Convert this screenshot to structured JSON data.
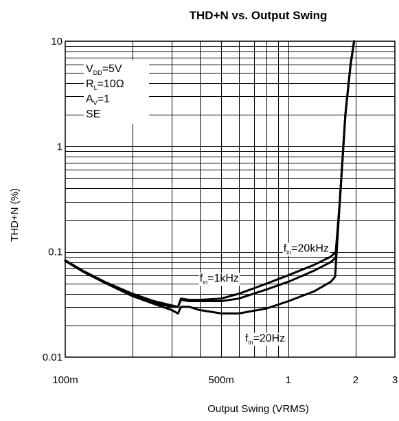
{
  "chart_data": {
    "type": "line",
    "title": "THD+N vs. Output Swing",
    "xlabel": "Output Swing (VRMS)",
    "ylabel": "THD+N (%)",
    "xscale": "log",
    "yscale": "log",
    "xlim": [
      0.1,
      3.0
    ],
    "ylim": [
      0.01,
      10
    ],
    "grid": true,
    "x_ticks": [
      {
        "value": 0.1,
        "label": "100m"
      },
      {
        "value": 0.5,
        "label": "500m"
      },
      {
        "value": 1,
        "label": "1"
      },
      {
        "value": 2,
        "label": "2"
      },
      {
        "value": 3,
        "label": "3"
      }
    ],
    "y_ticks": [
      {
        "value": 0.01,
        "label": "0.01"
      },
      {
        "value": 0.1,
        "label": "0.1"
      },
      {
        "value": 1,
        "label": "1"
      },
      {
        "value": 10,
        "label": "10"
      }
    ],
    "conditions": [
      {
        "main": "V",
        "sub": "DD",
        "rest": "=5V"
      },
      {
        "main": "R",
        "sub": "L",
        "rest": "=10Ω"
      },
      {
        "main": "A",
        "sub": "V",
        "rest": "=1"
      },
      {
        "main": "SE",
        "sub": "",
        "rest": ""
      }
    ],
    "series": [
      {
        "name": "f_in=20kHz",
        "label": {
          "main": "f",
          "sub": "in",
          "rest": "=20kHz"
        },
        "label_at": {
          "x": 0.95,
          "y": 0.1
        },
        "points": [
          [
            0.1,
            0.083
          ],
          [
            0.12,
            0.066
          ],
          [
            0.15,
            0.052
          ],
          [
            0.2,
            0.04
          ],
          [
            0.25,
            0.034
          ],
          [
            0.3,
            0.031
          ],
          [
            0.32,
            0.03
          ],
          [
            0.33,
            0.036
          ],
          [
            0.36,
            0.035
          ],
          [
            0.4,
            0.035
          ],
          [
            0.5,
            0.036
          ],
          [
            0.6,
            0.04
          ],
          [
            0.8,
            0.05
          ],
          [
            1.0,
            0.06
          ],
          [
            1.3,
            0.075
          ],
          [
            1.55,
            0.09
          ],
          [
            1.63,
            0.1
          ],
          [
            1.7,
            0.3
          ],
          [
            1.8,
            2.0
          ],
          [
            1.9,
            6.0
          ],
          [
            1.97,
            10
          ]
        ]
      },
      {
        "name": "f_in=1kHz",
        "label": {
          "main": "f",
          "sub": "in",
          "rest": "=1kHz"
        },
        "label_at": {
          "x": 0.4,
          "y": 0.052
        },
        "points": [
          [
            0.1,
            0.082
          ],
          [
            0.12,
            0.065
          ],
          [
            0.15,
            0.051
          ],
          [
            0.2,
            0.039
          ],
          [
            0.25,
            0.033
          ],
          [
            0.3,
            0.03
          ],
          [
            0.32,
            0.03
          ],
          [
            0.33,
            0.035
          ],
          [
            0.36,
            0.034
          ],
          [
            0.4,
            0.034
          ],
          [
            0.5,
            0.034
          ],
          [
            0.6,
            0.036
          ],
          [
            0.8,
            0.044
          ],
          [
            1.0,
            0.052
          ],
          [
            1.3,
            0.066
          ],
          [
            1.55,
            0.08
          ],
          [
            1.63,
            0.088
          ],
          [
            1.7,
            0.3
          ],
          [
            1.8,
            2.0
          ],
          [
            1.9,
            6.0
          ],
          [
            1.97,
            10
          ]
        ]
      },
      {
        "name": "f_in=20Hz",
        "label": {
          "main": "f",
          "sub": "in",
          "rest": "=20Hz"
        },
        "label_at": {
          "x": 0.64,
          "y": 0.014
        },
        "points": [
          [
            0.1,
            0.082
          ],
          [
            0.12,
            0.065
          ],
          [
            0.15,
            0.051
          ],
          [
            0.2,
            0.038
          ],
          [
            0.25,
            0.032
          ],
          [
            0.3,
            0.028
          ],
          [
            0.32,
            0.026
          ],
          [
            0.33,
            0.03
          ],
          [
            0.36,
            0.03
          ],
          [
            0.4,
            0.028
          ],
          [
            0.5,
            0.026
          ],
          [
            0.6,
            0.026
          ],
          [
            0.8,
            0.029
          ],
          [
            1.0,
            0.034
          ],
          [
            1.3,
            0.042
          ],
          [
            1.55,
            0.052
          ],
          [
            1.62,
            0.058
          ],
          [
            1.7,
            0.3
          ],
          [
            1.8,
            2.0
          ],
          [
            1.9,
            6.0
          ],
          [
            1.97,
            10
          ]
        ]
      }
    ]
  }
}
